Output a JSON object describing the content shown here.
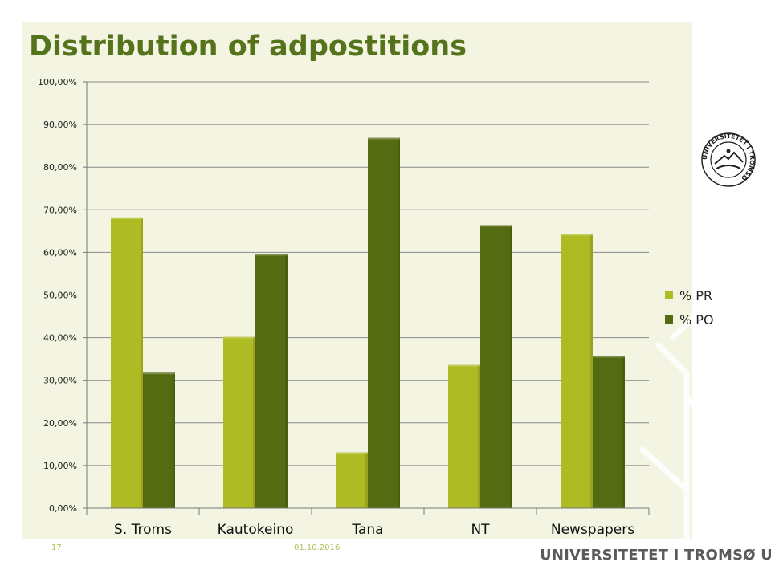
{
  "slide": {
    "title": "Distribution of adpostitions",
    "page_number": "17",
    "date": "01.10.2016",
    "brand": "UNIVERSITETET I TROMSØ UiT",
    "seal_text": "UNIVERSITETET I TROMSØ"
  },
  "colors": {
    "pr": "#aebb22",
    "po": "#556b12",
    "title": "#55731a",
    "background": "#f3f4e1",
    "grid": "#888888"
  },
  "chart_data": {
    "type": "bar",
    "title": "",
    "xlabel": "",
    "ylabel": "",
    "categories": [
      "S. Troms",
      "Kautokeino",
      "Tana",
      "NT",
      "Newspapers"
    ],
    "series": [
      {
        "name": "% PR",
        "values": [
          68.2,
          40.2,
          13.1,
          33.6,
          64.3
        ]
      },
      {
        "name": "% PO",
        "values": [
          31.8,
          59.6,
          86.9,
          66.4,
          35.7
        ]
      }
    ],
    "ylim": [
      0,
      100
    ],
    "yticks": [
      "0,00%",
      "10,00%",
      "20,00%",
      "30,00%",
      "40,00%",
      "50,00%",
      "60,00%",
      "70,00%",
      "80,00%",
      "90,00%",
      "100,00%"
    ],
    "grid": true,
    "legend_position": "right"
  }
}
